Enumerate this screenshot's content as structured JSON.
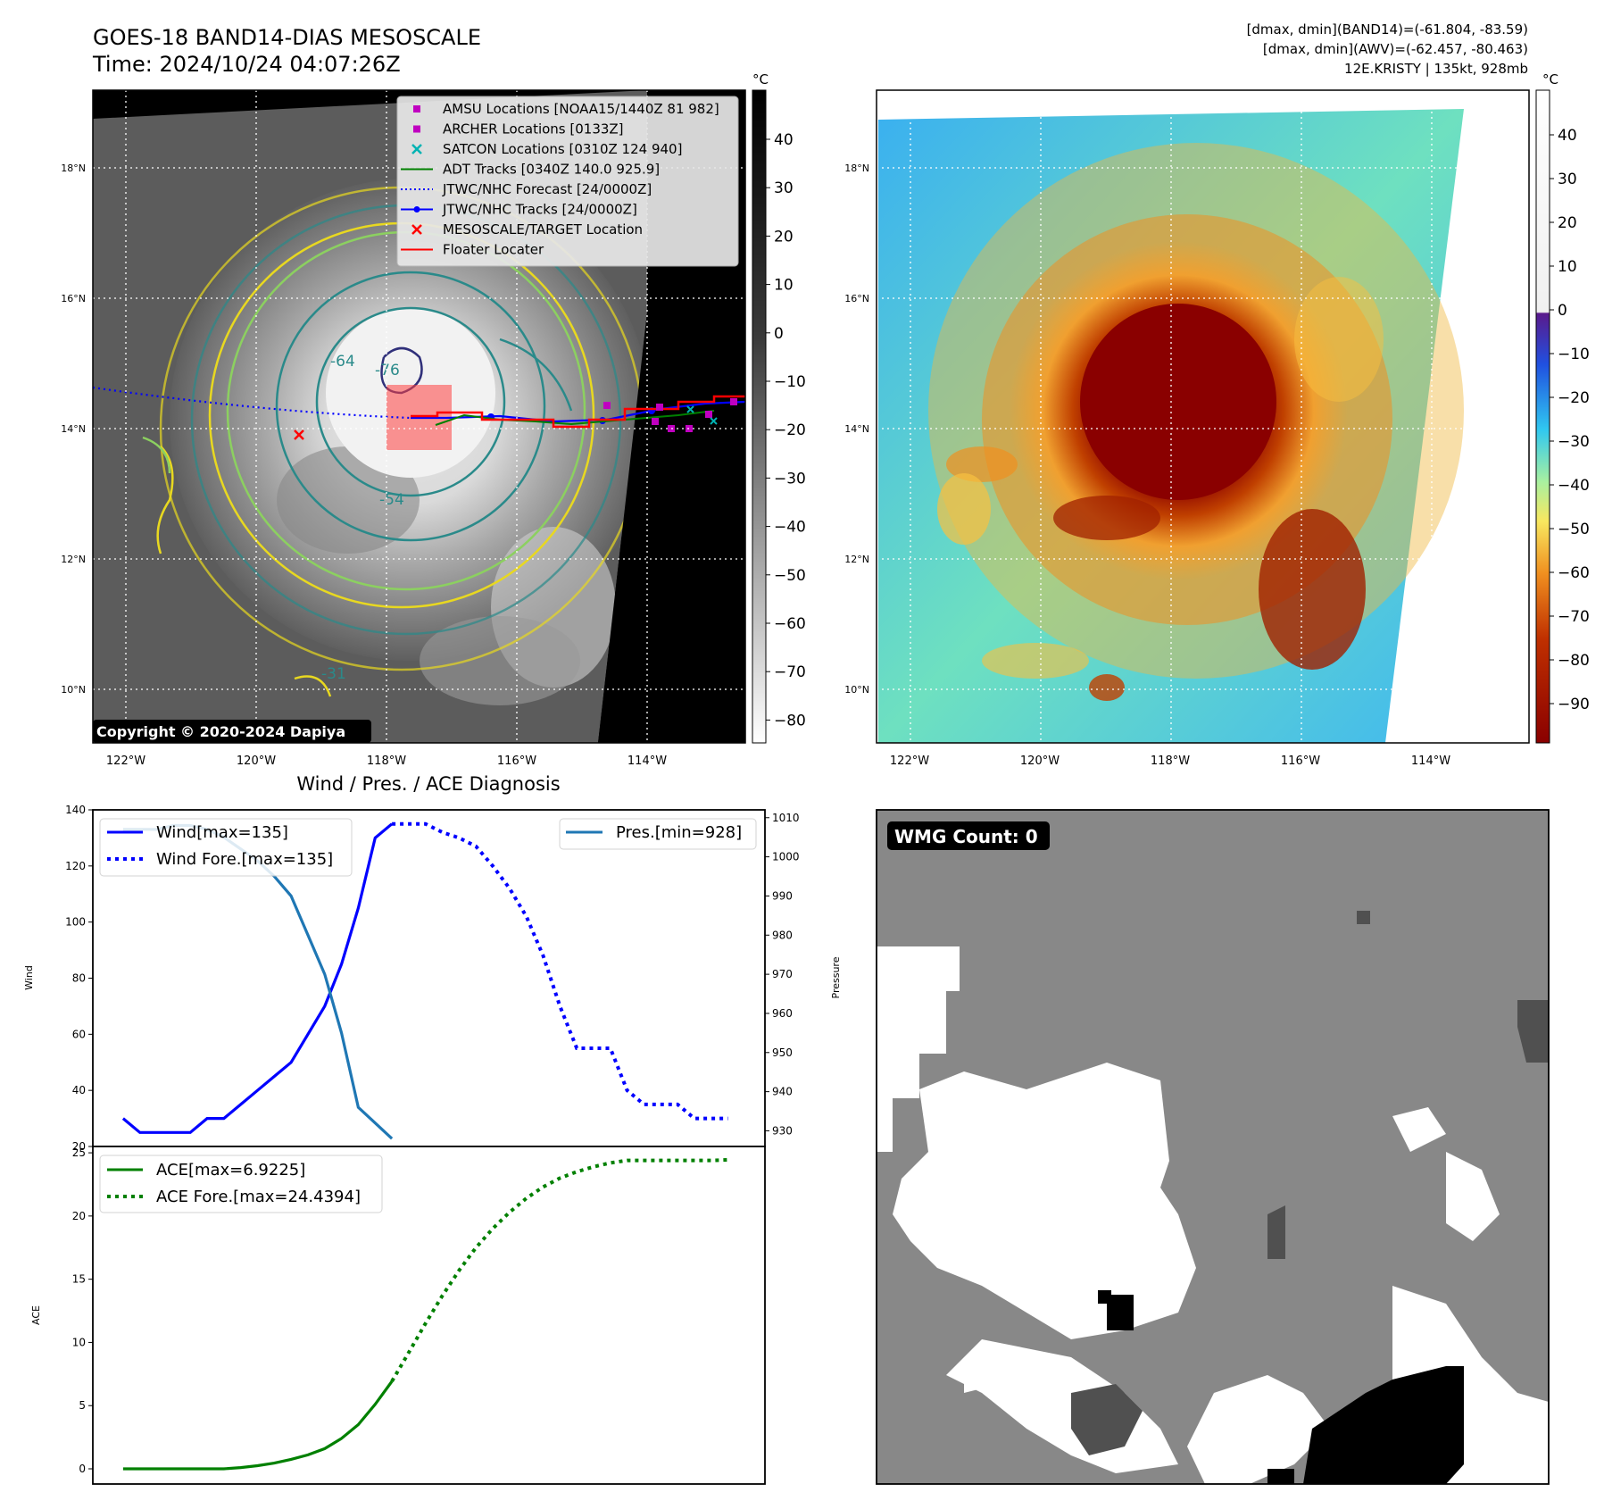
{
  "header": {
    "title_line1": "GOES-18 BAND14-DIAS MESOSCALE",
    "title_line2": "Time: 2024/10/24 04:07:26Z",
    "info_line1": "[dmax, dmin](BAND14)=(-61.804, -83.59)",
    "info_line2": "[dmax, dmin](AWV)=(-62.457, -80.463)",
    "info_line3": "12E.KRISTY | 135kt, 928mb"
  },
  "map": {
    "lon_labels": [
      "122°W",
      "120°W",
      "118°W",
      "116°W",
      "114°W"
    ],
    "lat_labels": [
      "18°N",
      "16°N",
      "14°N",
      "12°N",
      "10°N"
    ],
    "copyright": "Copyright © 2020-2024 Dapiya",
    "contour_labels": [
      "-76",
      "-54",
      "-31",
      "-64"
    ],
    "legend": [
      {
        "label": "AMSU Locations [NOAA15/1440Z 81 982]",
        "color": "#c000c0",
        "marker": "square"
      },
      {
        "label": "ARCHER Locations [0133Z]",
        "color": "#c000c0",
        "marker": "square"
      },
      {
        "label": "SATCON Locations [0310Z 124 940]",
        "color": "#00b3b3",
        "marker": "x"
      },
      {
        "label": "ADT Tracks [0340Z 140.0 925.9]",
        "color": "#008000",
        "marker": "line"
      },
      {
        "label": "JTWC/NHC Forecast [24/0000Z]",
        "color": "#0000ff",
        "marker": "dotted"
      },
      {
        "label": "JTWC/NHC Tracks [24/0000Z]",
        "color": "#0000ff",
        "marker": "line-dot"
      },
      {
        "label": "MESOSCALE/TARGET Location",
        "color": "#ff0000",
        "marker": "x"
      },
      {
        "label": "Floater Locater",
        "color": "#ff0000",
        "marker": "line"
      }
    ]
  },
  "colorbar_gray": {
    "unit": "°C",
    "ticks": [
      "40",
      "30",
      "20",
      "10",
      "0",
      "−10",
      "−20",
      "−30",
      "−40",
      "−50",
      "−60",
      "−70",
      "−80"
    ]
  },
  "colorbar_awv": {
    "unit": "°C",
    "ticks": [
      "40",
      "30",
      "20",
      "10",
      "0",
      "−10",
      "−20",
      "−30",
      "−40",
      "−50",
      "−60",
      "−70",
      "−80",
      "−90"
    ]
  },
  "wmg": {
    "label": "WMG Count: 0"
  },
  "chart_data": [
    {
      "type": "line",
      "title": "Wind / Pres. / ACE Diagnosis",
      "ylabel": "Wind",
      "ylabel_right": "Pressure",
      "ylim": [
        20,
        140
      ],
      "ylim_right": [
        926,
        1012
      ],
      "yticks": [
        "20",
        "40",
        "60",
        "80",
        "100",
        "120",
        "140"
      ],
      "yticks_right": [
        "930",
        "940",
        "950",
        "960",
        "970",
        "980",
        "990",
        "1000",
        "1010"
      ],
      "legend_left": [
        "Wind[max=135]",
        "Wind Fore.[max=135]"
      ],
      "legend_right": [
        "Pres.[min=928]"
      ],
      "x": [
        0,
        1,
        2,
        3,
        4,
        5,
        6,
        7,
        8,
        9,
        10,
        11,
        12,
        13,
        14,
        15,
        16,
        17,
        18,
        19,
        20,
        21,
        22,
        23,
        24,
        25,
        26,
        27,
        28,
        29,
        30,
        31,
        32,
        33,
        34,
        35,
        36
      ],
      "series": [
        {
          "name": "Wind[max=135]",
          "color": "#0000ff",
          "style": "solid",
          "x": [
            0,
            1,
            2,
            3,
            4,
            5,
            6,
            7,
            8,
            9,
            10,
            11,
            12,
            13,
            14,
            15,
            16
          ],
          "values": [
            30,
            25,
            25,
            25,
            25,
            30,
            30,
            35,
            40,
            45,
            50,
            60,
            70,
            85,
            105,
            130,
            135
          ]
        },
        {
          "name": "Wind Fore.[max=135]",
          "color": "#0000ff",
          "style": "dotted",
          "x": [
            16,
            17,
            18,
            19,
            20,
            21,
            22,
            23,
            24,
            25,
            26,
            27,
            28,
            29,
            30,
            31,
            32,
            33,
            34,
            35,
            36
          ],
          "values": [
            135,
            135,
            135,
            132,
            130,
            127,
            120,
            112,
            102,
            88,
            70,
            55,
            55,
            55,
            40,
            35,
            35,
            35,
            30,
            30,
            30
          ]
        },
        {
          "name": "Pres.[min=928]",
          "color": "#1f77b4",
          "style": "solid",
          "axis": "right",
          "x": [
            0,
            1,
            2,
            3,
            4,
            5,
            6,
            7,
            8,
            9,
            10,
            11,
            12,
            13,
            14,
            15,
            16
          ],
          "values": [
            1007,
            1007,
            1007,
            1008,
            1008,
            1007,
            1005,
            1002,
            999,
            995,
            990,
            980,
            970,
            955,
            936,
            932,
            928
          ]
        }
      ]
    },
    {
      "type": "line",
      "ylabel": "ACE",
      "ylim": [
        -1.2,
        25.5
      ],
      "yticks": [
        "0",
        "5",
        "10",
        "15",
        "20",
        "25"
      ],
      "legend": [
        "ACE[max=6.9225]",
        "ACE Fore.[max=24.4394]"
      ],
      "series": [
        {
          "name": "ACE[max=6.9225]",
          "color": "#008000",
          "style": "solid",
          "x": [
            0,
            1,
            2,
            3,
            4,
            5,
            6,
            7,
            8,
            9,
            10,
            11,
            12,
            13,
            14,
            15,
            16
          ],
          "values": [
            0,
            0,
            0,
            0,
            0,
            0,
            0,
            0.1,
            0.25,
            0.45,
            0.75,
            1.1,
            1.6,
            2.4,
            3.5,
            5.1,
            6.9225
          ]
        },
        {
          "name": "ACE Fore.[max=24.4394]",
          "color": "#008000",
          "style": "dotted",
          "x": [
            16,
            17,
            18,
            19,
            20,
            21,
            22,
            23,
            24,
            25,
            26,
            27,
            28,
            29,
            30,
            31,
            32,
            33,
            34,
            35,
            36
          ],
          "values": [
            6.9225,
            9.2,
            11.5,
            13.7,
            15.7,
            17.5,
            19.0,
            20.3,
            21.4,
            22.3,
            23.0,
            23.5,
            23.9,
            24.2,
            24.4,
            24.4,
            24.4,
            24.4,
            24.4,
            24.4,
            24.4394
          ]
        }
      ]
    }
  ]
}
